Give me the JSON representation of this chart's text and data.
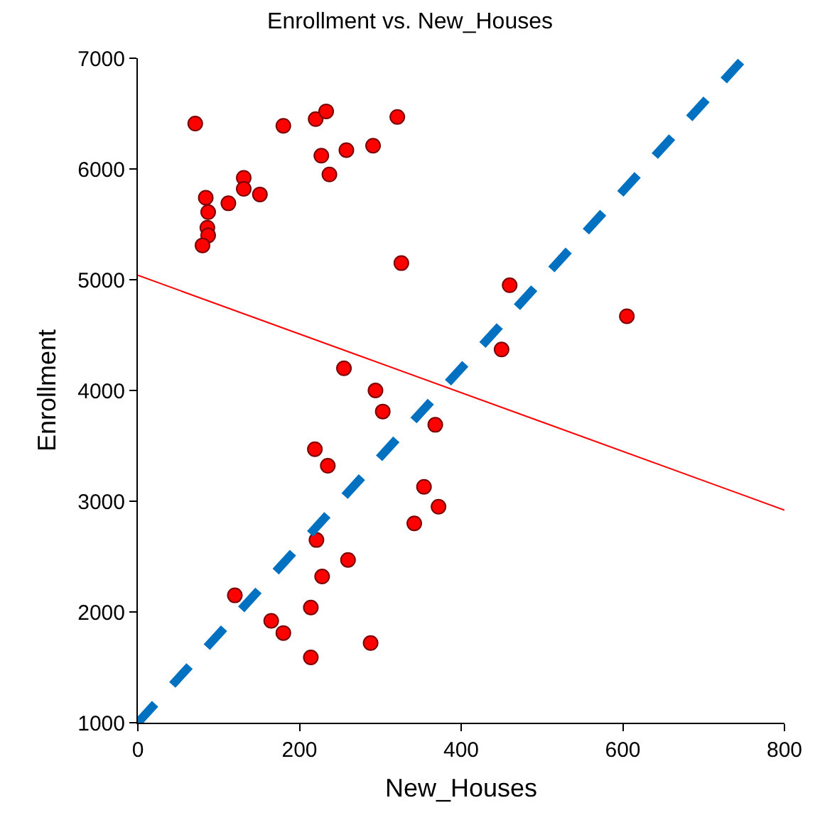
{
  "chart_data": {
    "type": "scatter",
    "title": "Enrollment vs. New_Houses",
    "xlabel": "New_Houses",
    "ylabel": "Enrollment",
    "xlim": [
      0,
      800
    ],
    "ylim": [
      1000,
      7000
    ],
    "xticks": [
      0,
      200,
      400,
      600,
      800
    ],
    "yticks": [
      1000,
      2000,
      3000,
      4000,
      5000,
      6000,
      7000
    ],
    "grid": false,
    "marker": "circle",
    "series": [
      {
        "color": "#ff0000",
        "x": [
          71,
          180,
          220,
          233,
          321,
          227,
          258,
          291,
          237,
          131,
          131,
          151,
          112,
          84,
          87,
          86,
          87,
          80,
          326,
          460,
          605,
          450,
          255,
          294,
          303,
          368,
          219,
          235,
          354,
          372,
          342,
          221,
          260,
          228,
          120,
          214,
          165,
          180,
          214,
          288
        ],
        "values": [
          6410,
          6390,
          6450,
          6520,
          6470,
          6120,
          6170,
          6210,
          5950,
          5920,
          5820,
          5770,
          5690,
          5740,
          5610,
          5470,
          5400,
          5310,
          5150,
          4950,
          4670,
          4370,
          4200,
          4000,
          3810,
          3690,
          3470,
          3320,
          3130,
          2950,
          2800,
          2650,
          2470,
          2320,
          2150,
          2040,
          1920,
          1810,
          1590,
          1720
        ]
      },
      {
        "type": "line",
        "color": "#ff0000",
        "line_style": "solid",
        "marker": "none",
        "x": [
          0,
          800
        ],
        "values": [
          5040,
          2920
        ]
      },
      {
        "type": "line",
        "color": "#0070c0",
        "line_style": "dashed",
        "marker": "none",
        "x": [
          0,
          750
        ],
        "values": [
          1000,
          7000
        ]
      }
    ]
  }
}
